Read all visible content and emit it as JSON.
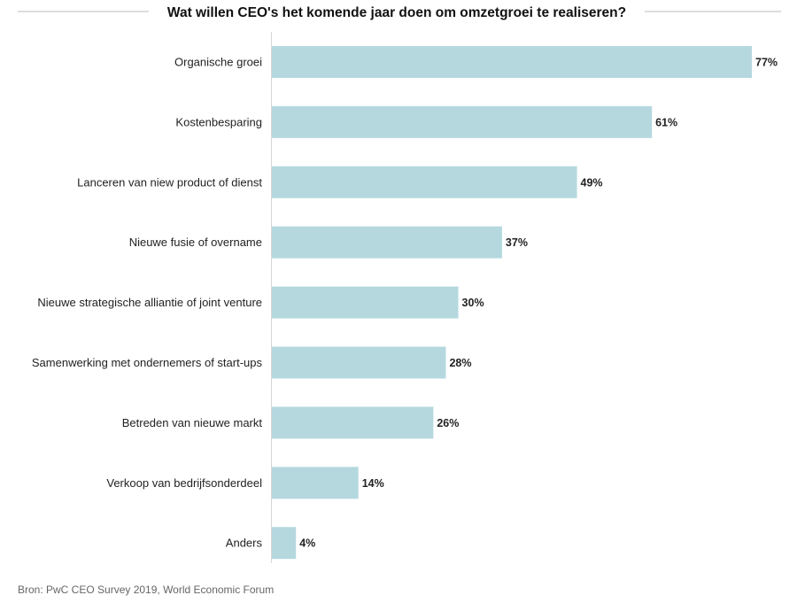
{
  "chart_data": {
    "type": "bar",
    "orientation": "horizontal",
    "title": "Wat willen CEO's het komende jaar doen om omzetgroei te realiseren?",
    "categories": [
      "Organische groei",
      "Kostenbesparing",
      "Lanceren van niew product of dienst",
      "Nieuwe fusie of overname",
      "Nieuwe strategische alliantie of joint venture",
      "Samenwerking met ondernemers of start-ups",
      "Betreden van nieuwe markt",
      "Verkoop van bedrijfsonderdeel",
      "Anders"
    ],
    "values": [
      77,
      61,
      49,
      37,
      30,
      28,
      26,
      14,
      4
    ],
    "value_labels": [
      "77%",
      "61%",
      "49%",
      "37%",
      "30%",
      "28%",
      "26%",
      "14%",
      "4%"
    ],
    "unit": "%",
    "xlim": [
      0,
      77
    ],
    "grid": false,
    "legend": "none",
    "bar_color": "#b5d8df"
  },
  "source": "Bron: PwC CEO Survey 2019, World Economic Forum"
}
